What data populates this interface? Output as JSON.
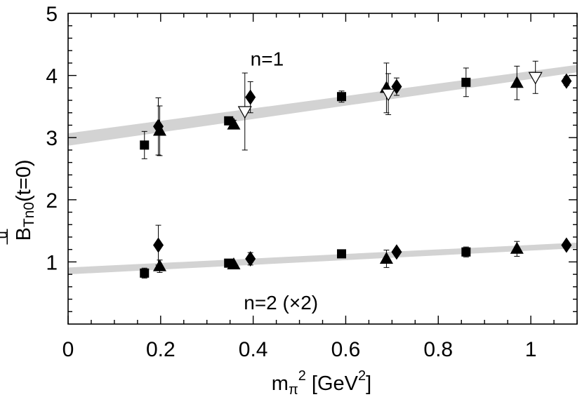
{
  "chart_data": {
    "type": "scatter",
    "xlabel": {
      "base": "m",
      "sub": "π",
      "sup": "2",
      "unit_open": " [GeV",
      "unit_sup": "2",
      "unit_close": "]"
    },
    "ylabel": {
      "bar": "—",
      "sup": "u",
      "main": "B",
      "sub": "Tn0",
      "suffix": "(t=0)"
    },
    "xlim": [
      0,
      1.1
    ],
    "ylim": [
      0,
      5
    ],
    "x_ticks": [
      0,
      0.2,
      0.4,
      0.6,
      0.8,
      1
    ],
    "x_tick_labels": [
      "0",
      "0.2",
      "0.4",
      "0.6",
      "0.8",
      "1"
    ],
    "y_ticks": [
      1,
      2,
      3,
      4,
      5
    ],
    "y_tick_labels": [
      "1",
      "2",
      "3",
      "4",
      "5"
    ],
    "annotations": [
      {
        "text": "n=1",
        "x": 0.43,
        "y": 4.27
      },
      {
        "text": "n=2 (×2)",
        "x": 0.46,
        "y": 0.35
      }
    ],
    "bands": [
      {
        "name": "n=1 fit",
        "x": [
          0,
          1.1
        ],
        "lower": [
          2.87,
          4.05
        ],
        "upper": [
          3.07,
          4.17
        ],
        "color": "#d3d3d3"
      },
      {
        "name": "n=2 fit",
        "x": [
          0,
          1.1
        ],
        "lower": [
          0.8,
          1.22
        ],
        "upper": [
          0.91,
          1.31
        ],
        "color": "#d3d3d3"
      }
    ],
    "series": [
      {
        "name": "squares",
        "marker": "square",
        "points": [
          {
            "x": 0.165,
            "y": 2.88,
            "err": 0.22
          },
          {
            "x": 0.347,
            "y": 3.27,
            "err": 0.05
          },
          {
            "x": 0.591,
            "y": 3.66,
            "err": 0.09
          },
          {
            "x": 0.86,
            "y": 3.89,
            "err": 0.23
          },
          {
            "x": 0.165,
            "y": 0.82,
            "err": 0.08
          },
          {
            "x": 0.347,
            "y": 0.98,
            "err": 0.03
          },
          {
            "x": 0.591,
            "y": 1.13,
            "err": 0.03
          },
          {
            "x": 0.86,
            "y": 1.16,
            "err": 0.08
          }
        ]
      },
      {
        "name": "triangles",
        "marker": "triangle",
        "points": [
          {
            "x": 0.198,
            "y": 3.11,
            "err": 0.4
          },
          {
            "x": 0.358,
            "y": 3.21,
            "err": 0.07
          },
          {
            "x": 0.688,
            "y": 3.8,
            "err": 0.4
          },
          {
            "x": 0.97,
            "y": 3.88,
            "err": 0.27
          },
          {
            "x": 0.198,
            "y": 0.93,
            "err": 0.1
          },
          {
            "x": 0.358,
            "y": 0.96,
            "err": 0.03
          },
          {
            "x": 0.688,
            "y": 1.05,
            "err": 0.14
          },
          {
            "x": 0.97,
            "y": 1.21,
            "err": 0.12
          }
        ]
      },
      {
        "name": "diamonds",
        "marker": "diamond",
        "points": [
          {
            "x": 0.195,
            "y": 3.18,
            "err": 0.46
          },
          {
            "x": 0.394,
            "y": 3.65,
            "err": 0.25
          },
          {
            "x": 0.71,
            "y": 3.82,
            "err": 0.14
          },
          {
            "x": 1.077,
            "y": 3.91,
            "err": 0.07
          },
          {
            "x": 0.195,
            "y": 1.27,
            "err": 0.32
          },
          {
            "x": 0.394,
            "y": 1.05,
            "err": 0.1
          },
          {
            "x": 0.71,
            "y": 1.16,
            "err": 0.04
          },
          {
            "x": 1.077,
            "y": 1.27,
            "err": 0.05
          }
        ]
      },
      {
        "name": "open triangles",
        "marker": "triangle-down-open",
        "points": [
          {
            "x": 0.382,
            "y": 3.42,
            "err": 0.62
          },
          {
            "x": 0.692,
            "y": 3.7,
            "err": 0.33
          },
          {
            "x": 1.01,
            "y": 3.97,
            "err": 0.26
          }
        ]
      }
    ]
  }
}
